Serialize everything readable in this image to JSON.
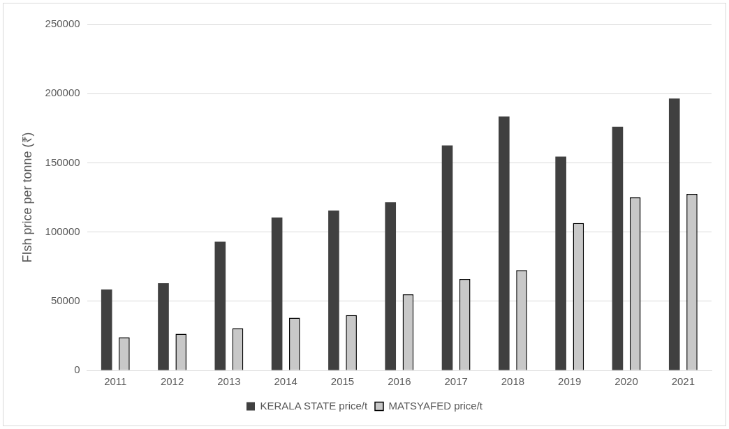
{
  "chart_data": {
    "type": "bar",
    "ylabel": "FIsh price per tonne (₹)",
    "categories": [
      "2011",
      "2012",
      "2013",
      "2014",
      "2015",
      "2016",
      "2017",
      "2018",
      "2019",
      "2020",
      "2021"
    ],
    "series": [
      {
        "name": "KERALA STATE price/t",
        "color": "#404040",
        "values": [
          58500,
          63000,
          93000,
          110500,
          115500,
          121500,
          162500,
          183500,
          154500,
          176000,
          196500
        ]
      },
      {
        "name": "MATSYAFED price/t",
        "color": "#c8c8c8",
        "values": [
          24000,
          26500,
          30500,
          38000,
          40000,
          55000,
          66000,
          72500,
          106500,
          125000,
          127500
        ]
      }
    ],
    "ylim": [
      0,
      250000
    ],
    "yticks": [
      0,
      50000,
      100000,
      150000,
      200000,
      250000
    ],
    "grid": "y",
    "legend": "bottom"
  }
}
